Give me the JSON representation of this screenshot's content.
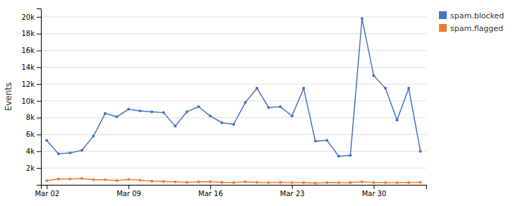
{
  "chart_data": {
    "type": "line",
    "ylabel": "Events",
    "categories": [
      "Mar 02",
      null,
      null,
      null,
      null,
      null,
      null,
      "Mar 09",
      null,
      null,
      null,
      null,
      null,
      null,
      "Mar 16",
      null,
      null,
      null,
      null,
      null,
      null,
      "Mar 23",
      null,
      null,
      null,
      null,
      null,
      null,
      "Mar 30",
      null,
      null,
      null,
      null
    ],
    "series": [
      {
        "name": "spam.blocked",
        "color": "#4472c4",
        "marker": "circle",
        "values": [
          5300,
          3700,
          3800,
          4100,
          5800,
          8500,
          8100,
          9000,
          8800,
          8700,
          8600,
          7000,
          8700,
          9300,
          8200,
          7400,
          7200,
          9800,
          11500,
          9200,
          9300,
          8200,
          11500,
          5200,
          5300,
          3400,
          3500,
          19800,
          13000,
          11500,
          7700,
          11500,
          4000
        ]
      },
      {
        "name": "spam.flagged",
        "color": "#ed7d31",
        "marker": "circle",
        "values": [
          500,
          700,
          700,
          750,
          600,
          600,
          500,
          650,
          550,
          450,
          400,
          350,
          300,
          350,
          380,
          300,
          280,
          350,
          300,
          280,
          290,
          280,
          270,
          200,
          280,
          270,
          280,
          350,
          280,
          280,
          270,
          280,
          300
        ]
      }
    ],
    "ylim": [
      0,
      21000
    ],
    "yticks": [
      {
        "value": 0,
        "label": ""
      },
      {
        "value": 2000,
        "label": "2k"
      },
      {
        "value": 4000,
        "label": "4k"
      },
      {
        "value": 6000,
        "label": "6k"
      },
      {
        "value": 8000,
        "label": "8k"
      },
      {
        "value": 10000,
        "label": "10k"
      },
      {
        "value": 12000,
        "label": "12k"
      },
      {
        "value": 14000,
        "label": "14k"
      },
      {
        "value": 16000,
        "label": "16k"
      },
      {
        "value": 18000,
        "label": "18k"
      },
      {
        "value": 20000,
        "label": "20k"
      }
    ],
    "grid": true,
    "legend": "upper right"
  }
}
